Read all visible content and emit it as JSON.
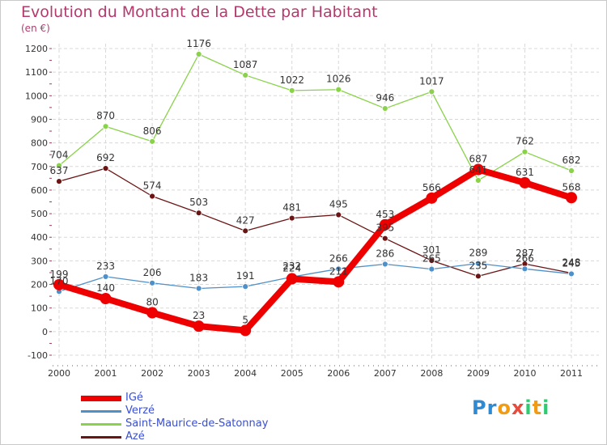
{
  "title": "Evolution du Montant de la Dette par Habitant",
  "subtitle": "(en €)",
  "logo": {
    "letters": [
      "P",
      "r",
      "o",
      "x",
      "i",
      "t",
      "i"
    ],
    "colors": [
      "#2e8bd3",
      "#2e8bd3",
      "#f39c12",
      "#e74c3c",
      "#2ecc71",
      "#f39c12",
      "#2ecc71"
    ]
  },
  "chart_data": {
    "type": "line",
    "categories": [
      "2000",
      "2001",
      "2002",
      "2003",
      "2004",
      "2005",
      "2006",
      "2007",
      "2008",
      "2009",
      "2010",
      "2011"
    ],
    "ylim": [
      -100,
      1200
    ],
    "yticks": [
      -100,
      0,
      100,
      200,
      300,
      400,
      500,
      600,
      700,
      800,
      900,
      1000,
      1100,
      1200
    ],
    "grid": true,
    "legend_position": "bottom-left",
    "series": [
      {
        "name": "IGé",
        "color": "#ee0000",
        "values": [
          199,
          140,
          80,
          23,
          5,
          224,
          211,
          453,
          566,
          687,
          631,
          568
        ]
      },
      {
        "name": "Verzé",
        "color": "#4f90c8",
        "values": [
          170,
          233,
          206,
          183,
          191,
          232,
          266,
          286,
          265,
          289,
          266,
          245
        ]
      },
      {
        "name": "Saint-Maurice-de-Satonnay",
        "color": "#8ad24a",
        "values": [
          704,
          870,
          806,
          1176,
          1087,
          1022,
          1026,
          946,
          1017,
          641,
          762,
          682
        ]
      },
      {
        "name": "Azé",
        "color": "#6b1414",
        "values": [
          637,
          692,
          574,
          503,
          427,
          481,
          495,
          395,
          301,
          235,
          287,
          248
        ]
      }
    ]
  }
}
